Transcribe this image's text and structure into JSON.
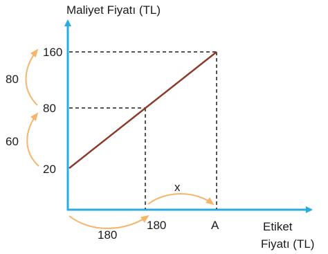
{
  "chart_data": {
    "type": "line",
    "ylabel": "Maliyet Fiyatı (TL)",
    "xlabel_line1": "Etiket",
    "xlabel_line2": "Fiyatı (TL)",
    "series": [
      {
        "x": [
          0,
          180,
          "A"
        ],
        "y": [
          20,
          80,
          160
        ]
      }
    ],
    "y_ticks": [
      "160",
      "80",
      "20"
    ],
    "x_ticks": [
      "180",
      "A"
    ],
    "annotations": {
      "y_step_upper": "80",
      "y_step_lower": "60",
      "x_step_first": "180",
      "x_step_second": "x"
    },
    "colors": {
      "axis": "#29abe2",
      "line": "#8b3a2a",
      "arrows": "#f7b56b",
      "guides": "#1a1a1a"
    }
  }
}
